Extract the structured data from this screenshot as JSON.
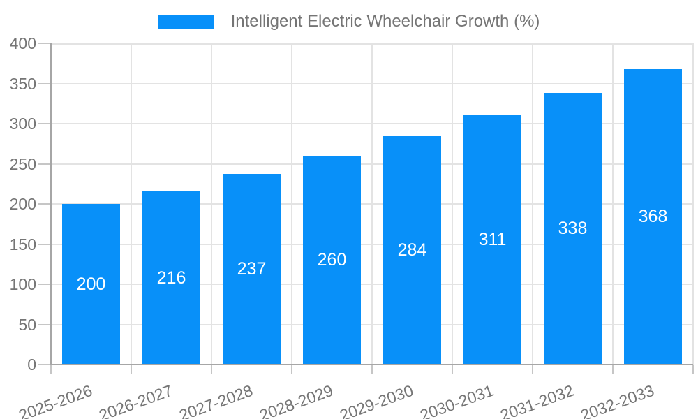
{
  "legend": {
    "label": "Intelligent Electric Wheelchair Growth (%)"
  },
  "chart_data": {
    "type": "bar",
    "title": "Intelligent Electric Wheelchair Growth (%)",
    "series_name": "Intelligent Electric Wheelchair Growth (%)",
    "categories": [
      "2025-2026",
      "2026-2027",
      "2027-2028",
      "2028-2029",
      "2029-2030",
      "2030-2031",
      "2031-2032",
      "2032-2033"
    ],
    "values": [
      200,
      216,
      237,
      260,
      284,
      311,
      338,
      368
    ],
    "xlabel": "",
    "ylabel": "",
    "ylim": [
      0,
      400
    ],
    "yticks": [
      0,
      50,
      100,
      150,
      200,
      250,
      300,
      350,
      400
    ],
    "grid": true,
    "legend_position": "top",
    "colors": {
      "bar": "#0890f9",
      "bar_label": "#ffffff",
      "axis_text": "#757575",
      "legend_text": "#757575",
      "gridline": "#e3e3e3",
      "axis_line": "#a6a6a6",
      "tick": "#c6c6c6",
      "background": "#ffffff"
    }
  }
}
